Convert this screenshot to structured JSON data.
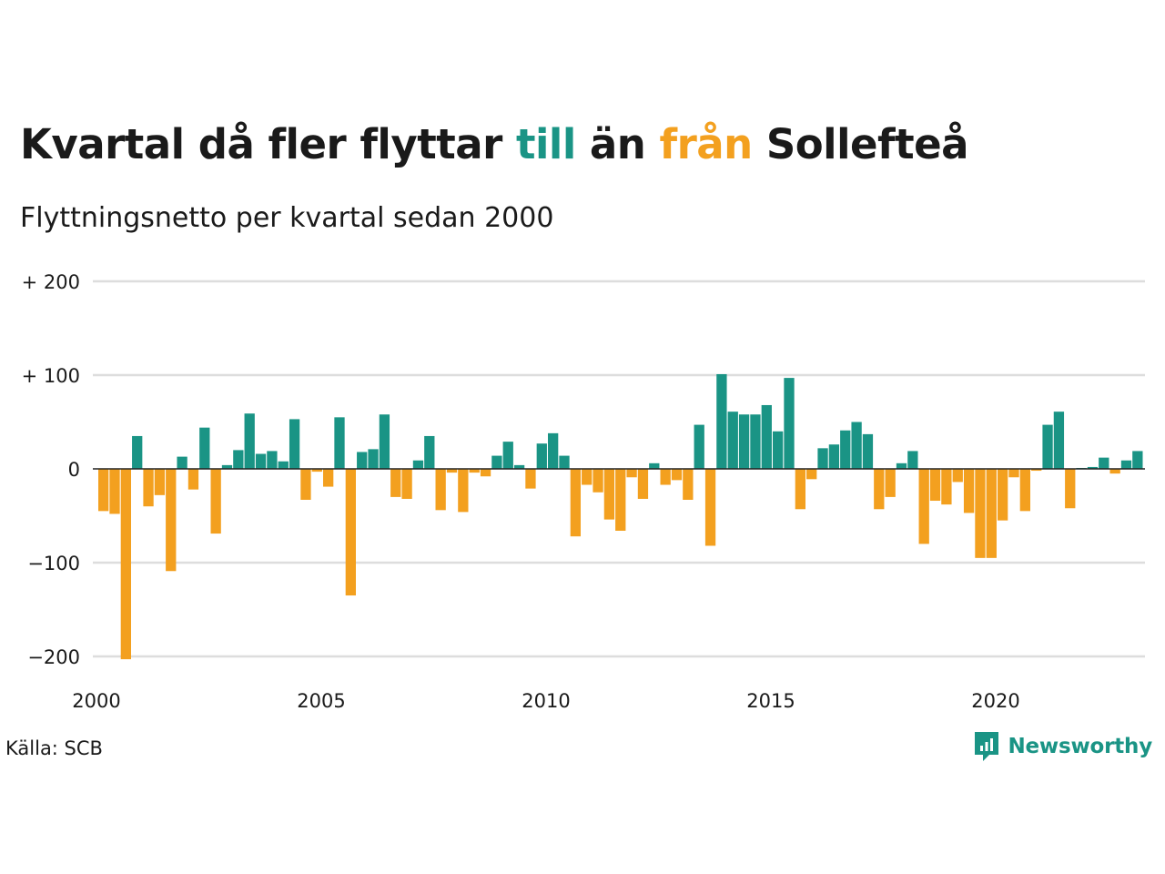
{
  "header": {
    "title_parts": [
      "Kvartal då fler flyttar ",
      "till",
      " än ",
      "från",
      " Sollefteå"
    ],
    "subtitle": "Flyttningsnetto per kvartal sedan 2000"
  },
  "colors": {
    "positive": "#1a9485",
    "negative": "#f3a01f",
    "grid": "#dddddd",
    "text": "#1a1a1a"
  },
  "chart_data": {
    "type": "bar",
    "title": "Kvartal då fler flyttar till än från Sollefteå",
    "subtitle": "Flyttningsnetto per kvartal sedan 2000",
    "x_start": "2000 Q1",
    "x_ticks": [
      "2000",
      "2005",
      "2010",
      "2015",
      "2020"
    ],
    "y_ticks": [
      200,
      100,
      0,
      -100,
      -200
    ],
    "y_tick_labels": [
      "+ 200",
      "+ 100",
      "0",
      "−100",
      "−200"
    ],
    "ylim": [
      -200,
      200
    ],
    "grid": true,
    "values": [
      -45,
      -48,
      -203,
      35,
      -40,
      -28,
      -109,
      13,
      -22,
      44,
      -69,
      4,
      20,
      59,
      16,
      19,
      8,
      53,
      -33,
      -3,
      -19,
      55,
      -135,
      18,
      21,
      58,
      -30,
      -32,
      9,
      35,
      -44,
      -4,
      -46,
      -4,
      -8,
      14,
      29,
      4,
      -21,
      27,
      38,
      14,
      -72,
      -17,
      -25,
      -54,
      -66,
      -9,
      -32,
      6,
      -17,
      -12,
      -33,
      47,
      -82,
      101,
      61,
      58,
      58,
      68,
      40,
      97,
      -43,
      -11,
      22,
      26,
      41,
      50,
      37,
      -43,
      -30,
      6,
      19,
      -80,
      -34,
      -38,
      -14,
      -47,
      -95,
      -95,
      -55,
      -9,
      -45,
      -2,
      47,
      61,
      -42,
      1,
      2,
      12,
      -5,
      9,
      19
    ]
  },
  "footer": {
    "source": "Källa: SCB",
    "brand": "Newsworthy",
    "brand_icon": "newsworthy-logo-icon"
  }
}
